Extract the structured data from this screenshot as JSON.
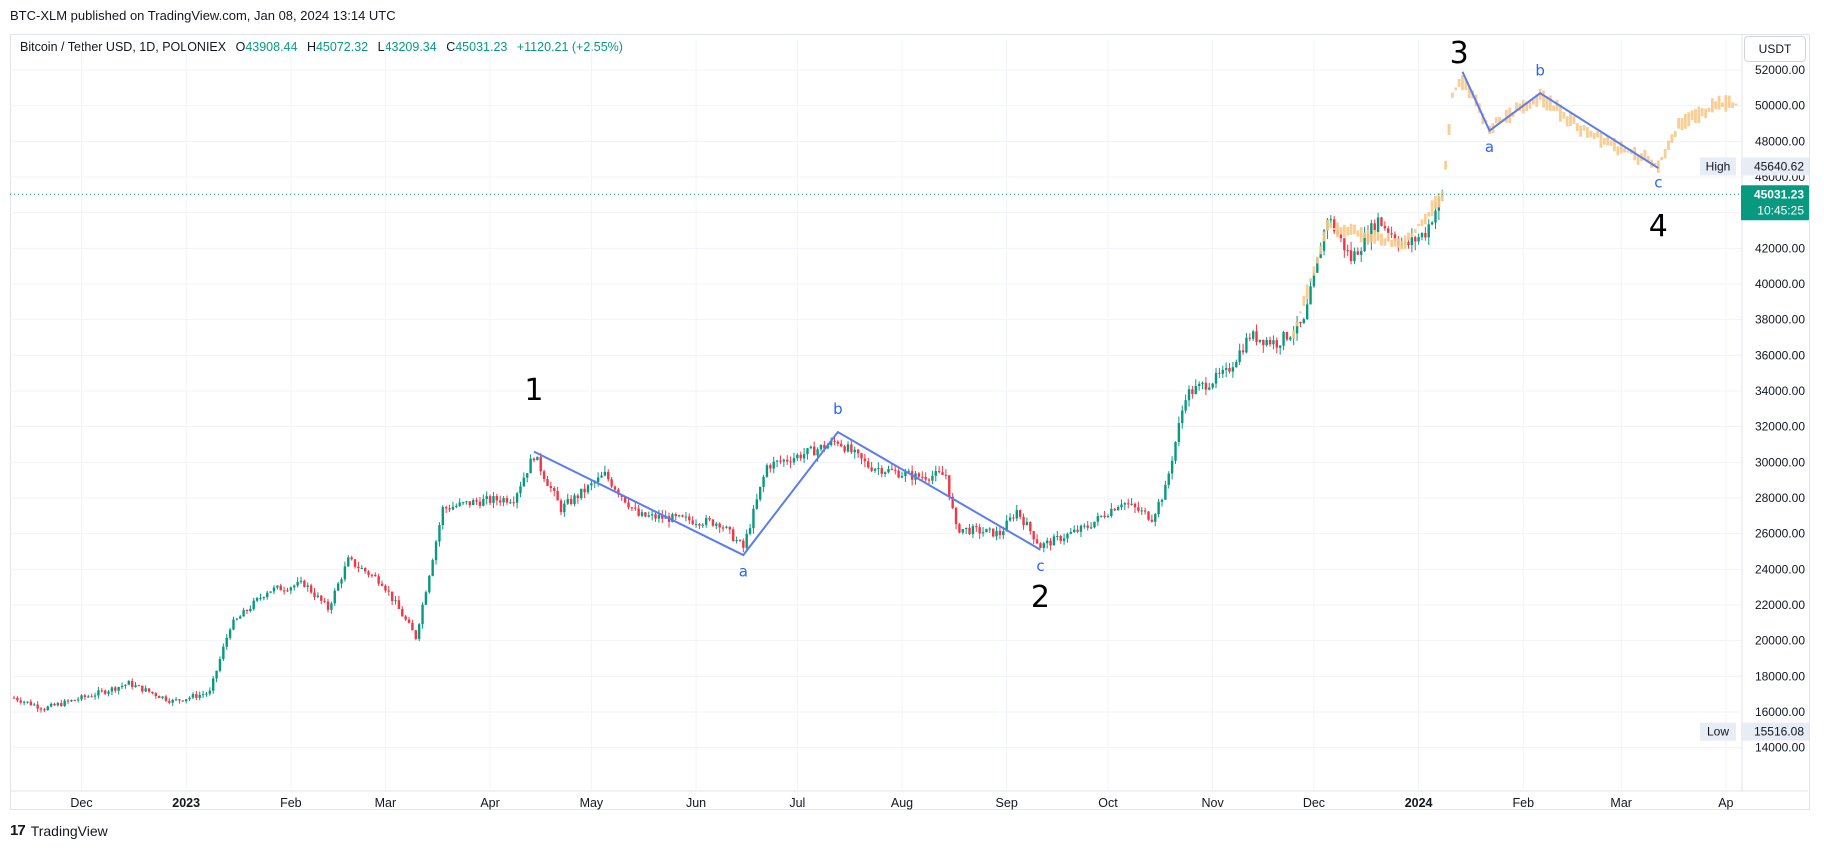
{
  "header": {
    "published": "BTC-XLM published on TradingView.com, Jan 08, 2024 13:14 UTC"
  },
  "legend": {
    "symbol": "Bitcoin / Tether USD, 1D, POLONIEX",
    "o_key": "O",
    "o_val": "43908.44",
    "h_key": "H",
    "h_val": "45072.32",
    "l_key": "L",
    "l_val": "43209.34",
    "c_key": "C",
    "c_val": "45031.23",
    "change": "+1120.21 (+2.55%)"
  },
  "currency": "USDT",
  "footer": {
    "brand": "TradingView",
    "logo": "17"
  },
  "markers": {
    "high_label": "High",
    "high_value": "45640.62",
    "low_label": "Low",
    "low_value": "15516.08",
    "last_price": "45031.23",
    "countdown": "10:45:25"
  },
  "colors": {
    "up": "#089981",
    "down": "#f23645",
    "projection": "#f7c98a",
    "wave_line": "#5b7cf2",
    "wave_small": "#2962ff",
    "last_line": "#089981"
  },
  "chart_data": {
    "type": "candlestick",
    "ylim": [
      13000,
      53000
    ],
    "y_ticks": [
      "14000.00",
      "16000.00",
      "18000.00",
      "20000.00",
      "22000.00",
      "24000.00",
      "26000.00",
      "28000.00",
      "30000.00",
      "32000.00",
      "34000.00",
      "36000.00",
      "38000.00",
      "40000.00",
      "42000.00",
      "44000.00",
      "46000.00",
      "48000.00",
      "50000.00",
      "52000.00"
    ],
    "x_ticks": [
      {
        "label": "Dec",
        "date": "2022-12-01"
      },
      {
        "label": "2023",
        "date": "2023-01-01",
        "bold": true
      },
      {
        "label": "Feb",
        "date": "2023-02-01"
      },
      {
        "label": "Mar",
        "date": "2023-03-01"
      },
      {
        "label": "Apr",
        "date": "2023-04-01"
      },
      {
        "label": "May",
        "date": "2023-05-01"
      },
      {
        "label": "Jun",
        "date": "2023-06-01"
      },
      {
        "label": "Jul",
        "date": "2023-07-01"
      },
      {
        "label": "Aug",
        "date": "2023-08-01"
      },
      {
        "label": "Sep",
        "date": "2023-09-01"
      },
      {
        "label": "Oct",
        "date": "2023-10-01"
      },
      {
        "label": "Nov",
        "date": "2023-11-01"
      },
      {
        "label": "Dec",
        "date": "2023-12-01"
      },
      {
        "label": "2024",
        "date": "2024-01-01",
        "bold": true
      },
      {
        "label": "Feb",
        "date": "2024-02-01"
      },
      {
        "label": "Mar",
        "date": "2024-03-01"
      },
      {
        "label": "Ap",
        "date": "2024-04-01"
      }
    ],
    "price_path": [
      {
        "date": "2022-11-11",
        "price": 16800
      },
      {
        "date": "2022-11-20",
        "price": 16200
      },
      {
        "date": "2022-12-05",
        "price": 17000
      },
      {
        "date": "2022-12-15",
        "price": 17600
      },
      {
        "date": "2022-12-28",
        "price": 16600
      },
      {
        "date": "2023-01-08",
        "price": 17100
      },
      {
        "date": "2023-01-14",
        "price": 20800
      },
      {
        "date": "2023-01-25",
        "price": 22800
      },
      {
        "date": "2023-02-05",
        "price": 23200
      },
      {
        "date": "2023-02-12",
        "price": 21800
      },
      {
        "date": "2023-02-18",
        "price": 24500
      },
      {
        "date": "2023-02-28",
        "price": 23300
      },
      {
        "date": "2023-03-10",
        "price": 20200
      },
      {
        "date": "2023-03-18",
        "price": 27400
      },
      {
        "date": "2023-03-28",
        "price": 27800
      },
      {
        "date": "2023-04-08",
        "price": 28000
      },
      {
        "date": "2023-04-14",
        "price": 30400
      },
      {
        "date": "2023-04-22",
        "price": 27400
      },
      {
        "date": "2023-05-05",
        "price": 29300
      },
      {
        "date": "2023-05-15",
        "price": 27000
      },
      {
        "date": "2023-05-28",
        "price": 26800
      },
      {
        "date": "2023-06-08",
        "price": 26600
      },
      {
        "date": "2023-06-15",
        "price": 25200
      },
      {
        "date": "2023-06-22",
        "price": 29800
      },
      {
        "date": "2023-07-05",
        "price": 30600
      },
      {
        "date": "2023-07-13",
        "price": 31200
      },
      {
        "date": "2023-07-22",
        "price": 29800
      },
      {
        "date": "2023-08-05",
        "price": 29200
      },
      {
        "date": "2023-08-14",
        "price": 29300
      },
      {
        "date": "2023-08-17",
        "price": 26300
      },
      {
        "date": "2023-08-30",
        "price": 26000
      },
      {
        "date": "2023-09-04",
        "price": 27300
      },
      {
        "date": "2023-09-11",
        "price": 25300
      },
      {
        "date": "2023-09-25",
        "price": 26400
      },
      {
        "date": "2023-10-05",
        "price": 27800
      },
      {
        "date": "2023-10-14",
        "price": 26900
      },
      {
        "date": "2023-10-18",
        "price": 28500
      },
      {
        "date": "2023-10-24",
        "price": 33800
      },
      {
        "date": "2023-11-05",
        "price": 35000
      },
      {
        "date": "2023-11-12",
        "price": 37100
      },
      {
        "date": "2023-11-20",
        "price": 36700
      },
      {
        "date": "2023-11-28",
        "price": 37800
      },
      {
        "date": "2023-12-05",
        "price": 43800
      },
      {
        "date": "2023-12-12",
        "price": 41400
      },
      {
        "date": "2023-12-20",
        "price": 43600
      },
      {
        "date": "2023-12-28",
        "price": 42100
      },
      {
        "date": "2024-01-03",
        "price": 42900
      },
      {
        "date": "2024-01-08",
        "price": 45031
      }
    ],
    "projection_path": [
      {
        "date": "2023-11-25",
        "price": 37200
      },
      {
        "date": "2023-12-05",
        "price": 43200
      },
      {
        "date": "2023-12-15",
        "price": 42800
      },
      {
        "date": "2023-12-28",
        "price": 42300
      },
      {
        "date": "2024-01-08",
        "price": 45000
      },
      {
        "date": "2024-01-11",
        "price": 50600
      },
      {
        "date": "2024-01-14",
        "price": 51400
      },
      {
        "date": "2024-01-22",
        "price": 48800
      },
      {
        "date": "2024-02-06",
        "price": 50500
      },
      {
        "date": "2024-02-20",
        "price": 48500
      },
      {
        "date": "2024-03-01",
        "price": 47600
      },
      {
        "date": "2024-03-12",
        "price": 46700
      },
      {
        "date": "2024-03-18",
        "price": 48900
      },
      {
        "date": "2024-03-28",
        "price": 50000
      },
      {
        "date": "2024-04-04",
        "price": 50100
      }
    ],
    "wave_lines": [
      [
        {
          "date": "2023-04-14",
          "price": 30600
        },
        {
          "date": "2023-06-15",
          "price": 24800
        },
        {
          "date": "2023-07-13",
          "price": 31700
        },
        {
          "date": "2023-09-11",
          "price": 25100
        }
      ],
      [
        {
          "date": "2024-01-14",
          "price": 51900
        },
        {
          "date": "2024-01-22",
          "price": 48600
        },
        {
          "date": "2024-02-06",
          "price": 50700
        },
        {
          "date": "2024-03-12",
          "price": 46500
        }
      ]
    ],
    "wave_labels": [
      {
        "text": "1",
        "date": "2023-04-14",
        "price": 33500,
        "size": "big"
      },
      {
        "text": "2",
        "date": "2023-09-11",
        "price": 21900,
        "size": "big"
      },
      {
        "text": "3",
        "date": "2024-01-13",
        "price": 52400,
        "size": "big"
      },
      {
        "text": "4",
        "date": "2024-03-12",
        "price": 42700,
        "size": "big"
      },
      {
        "text": "a",
        "date": "2023-06-15",
        "price": 23600,
        "size": "small"
      },
      {
        "text": "b",
        "date": "2023-07-13",
        "price": 32700,
        "size": "small"
      },
      {
        "text": "c",
        "date": "2023-09-11",
        "price": 23900,
        "size": "small"
      },
      {
        "text": "a",
        "date": "2024-01-22",
        "price": 47400,
        "size": "small"
      },
      {
        "text": "b",
        "date": "2024-02-06",
        "price": 51700,
        "size": "small"
      },
      {
        "text": "c",
        "date": "2024-03-12",
        "price": 45400,
        "size": "small"
      }
    ],
    "last_price": 45031.23,
    "high": 45640.62,
    "low": 15516.08,
    "grid": true
  }
}
